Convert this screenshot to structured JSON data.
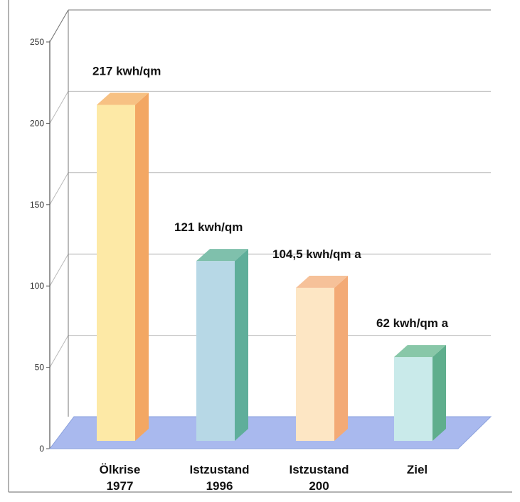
{
  "chart_data": {
    "type": "bar",
    "categories": [
      [
        "Ölkrise",
        "1977"
      ],
      [
        "Istzustand",
        "1996"
      ],
      [
        "Istzustand",
        "200"
      ],
      [
        "Ziel"
      ]
    ],
    "values": [
      217,
      121,
      104.5,
      62
    ],
    "data_labels": [
      "217 kwh/qm",
      "121 kwh/qm",
      "104,5 kwh/qm a",
      "62 kwh/qm a"
    ],
    "ylim": [
      0,
      250
    ],
    "yticks": [
      "0",
      "50",
      "100",
      "150",
      "200",
      "250"
    ],
    "grid": true,
    "legend": "none",
    "colors": {
      "floor": "#a9b9ee",
      "floor_edge": "#8aa0dc",
      "grid": "#b9b9b9",
      "bars": [
        {
          "front": "#fde9a6",
          "side": "#f3a763",
          "top": "#f7c183"
        },
        {
          "front": "#b7d8e6",
          "side": "#5fae9a",
          "top": "#7fc0ac"
        },
        {
          "front": "#fde6c4",
          "side": "#f3aa76",
          "top": "#f6c199"
        },
        {
          "front": "#c9eaea",
          "side": "#5fae8d",
          "top": "#88c7a8"
        }
      ]
    }
  }
}
